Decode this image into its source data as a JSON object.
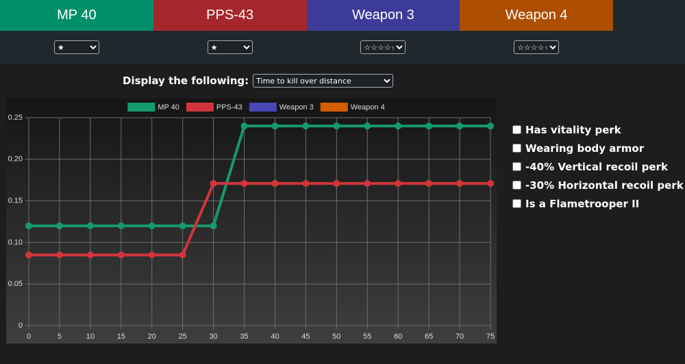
{
  "tabs": [
    {
      "label": "MP 40",
      "color": "#008f6a",
      "selector": "★"
    },
    {
      "label": "PPS-43",
      "color": "#a5262c",
      "selector": "★"
    },
    {
      "label": "Weapon 3",
      "color": "#3c3c98",
      "selector": "☆☆☆☆☆"
    },
    {
      "label": "Weapon 4",
      "color": "#ad4e00",
      "selector": "☆☆☆☆☆"
    }
  ],
  "display_label": "Display the following:",
  "display_select": "Time to kill over distance",
  "chart_data": {
    "type": "line",
    "x": [
      0,
      5,
      10,
      15,
      20,
      25,
      30,
      35,
      40,
      45,
      50,
      55,
      60,
      65,
      70,
      75
    ],
    "xlim": [
      0,
      75
    ],
    "xticks": [
      0,
      5,
      10,
      15,
      20,
      25,
      30,
      35,
      40,
      45,
      50,
      55,
      60,
      65,
      70,
      75
    ],
    "ylim": [
      0,
      0.25
    ],
    "yticks": [
      0,
      0.05,
      {
        "value": 0.1,
        "label": "0.10"
      },
      0.15,
      {
        "value": 0.2,
        "label": "0.20"
      },
      0.25
    ],
    "grid": true,
    "legend": "top",
    "series": [
      {
        "name": "MP 40",
        "color": "#159a6c",
        "values": [
          0.12,
          0.12,
          0.12,
          0.12,
          0.12,
          0.12,
          0.12,
          0.24,
          0.24,
          0.24,
          0.24,
          0.24,
          0.24,
          0.24,
          0.24,
          0.24
        ]
      },
      {
        "name": "PPS-43",
        "color": "#d1353b",
        "values": [
          0.085,
          0.085,
          0.085,
          0.085,
          0.085,
          0.085,
          0.171,
          0.171,
          0.171,
          0.171,
          0.171,
          0.171,
          0.171,
          0.171,
          0.171,
          0.171
        ]
      },
      {
        "name": "Weapon 3",
        "color": "#4848b8",
        "values": [
          null,
          null,
          null,
          null,
          null,
          null,
          null,
          null,
          null,
          null,
          null,
          null,
          null,
          null,
          null,
          null
        ]
      },
      {
        "name": "Weapon 4",
        "color": "#d35c00",
        "values": [
          null,
          null,
          null,
          null,
          null,
          null,
          null,
          null,
          null,
          null,
          null,
          null,
          null,
          null,
          null,
          null
        ]
      }
    ]
  },
  "options": [
    "Has vitality perk",
    "Wearing body armor",
    "-40% Vertical recoil perk",
    "-30% Horizontal recoil perk",
    "Is a Flametrooper II"
  ]
}
